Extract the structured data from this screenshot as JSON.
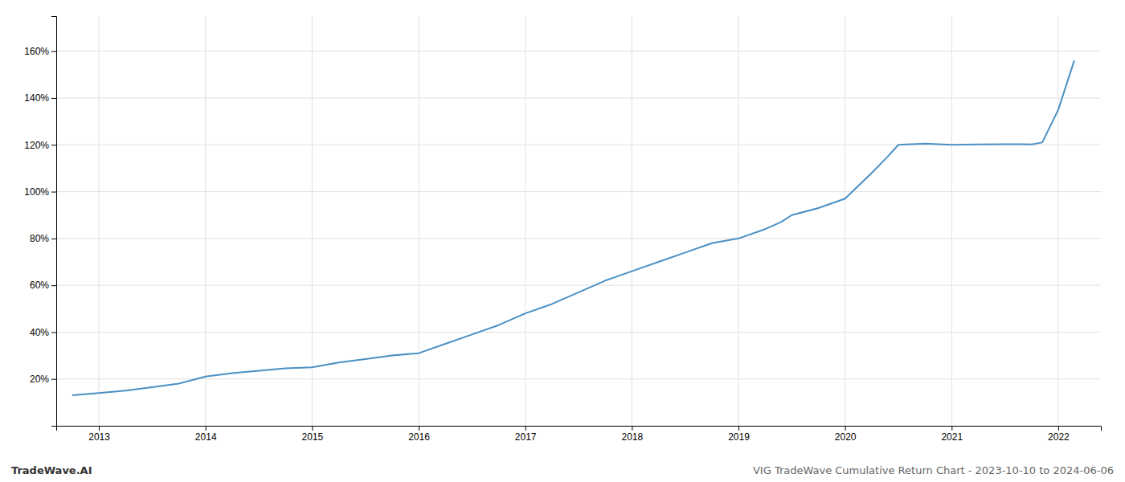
{
  "chart_data": {
    "type": "line",
    "x": [
      2012.75,
      2013.0,
      2013.25,
      2013.5,
      2013.75,
      2014.0,
      2014.25,
      2014.5,
      2014.75,
      2015.0,
      2015.25,
      2015.5,
      2015.75,
      2016.0,
      2016.25,
      2016.5,
      2016.75,
      2017.0,
      2017.25,
      2017.5,
      2017.75,
      2018.0,
      2018.25,
      2018.5,
      2018.75,
      2019.0,
      2019.25,
      2019.4,
      2019.5,
      2019.75,
      2020.0,
      2020.25,
      2020.4,
      2020.5,
      2020.75,
      2021.0,
      2021.25,
      2021.5,
      2021.75,
      2021.85,
      2022.0,
      2022.15
    ],
    "values": [
      13,
      14,
      15,
      16.5,
      18,
      21,
      22.5,
      23.5,
      24.5,
      25,
      27,
      28.5,
      30,
      31,
      35,
      39,
      43,
      48,
      52,
      57,
      62,
      66,
      70,
      74,
      78,
      80,
      84,
      87,
      90,
      93,
      97,
      108,
      115,
      120,
      120.5,
      120,
      120.2,
      120.3,
      120.2,
      121,
      135,
      156
    ],
    "color": "#4a90c4",
    "xlim": [
      2012.6,
      2022.4
    ],
    "xticks": [
      2013,
      2014,
      2015,
      2016,
      2017,
      2018,
      2019,
      2020,
      2021,
      2022
    ],
    "ylim": [
      0,
      175
    ],
    "yticks": [
      {
        "value": 20,
        "label": "20%"
      },
      {
        "value": 40,
        "label": "40%"
      },
      {
        "value": 60,
        "label": "60%"
      },
      {
        "value": 80,
        "label": "80%"
      },
      {
        "value": 100,
        "label": "100%"
      },
      {
        "value": 120,
        "label": "120%"
      },
      {
        "value": 140,
        "label": "140%"
      },
      {
        "value": 160,
        "label": "160%"
      }
    ],
    "grid": true,
    "annotations": [
      "TradeWave.AI",
      "VIG TradeWave Cumulative Return Chart - 2023-10-10 to 2024-06-06"
    ]
  }
}
